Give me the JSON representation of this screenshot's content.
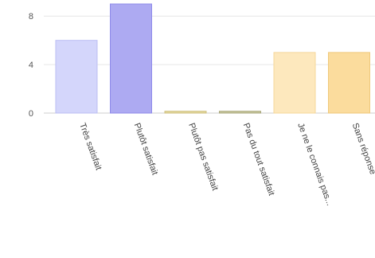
{
  "chart_data": {
    "type": "bar",
    "categories": [
      "Très satisfait",
      "Plutôt satisfait",
      "Plutôt pas satisfait",
      "Pas du tout satisfait",
      "Je ne le connais pas...",
      "Sans réponse"
    ],
    "values": [
      6,
      9,
      0.15,
      0.15,
      5,
      5
    ],
    "ylim": [
      0,
      9
    ],
    "yticks": [
      0,
      4,
      8
    ],
    "grid": true,
    "legend": "none",
    "bar_colors": [
      "#d4d6fb",
      "#adaaf2",
      "#e5d9a1",
      "#c9c89e",
      "#fde8bd",
      "#fbdc9d"
    ],
    "bar_edges": [
      "#bcbff3",
      "#8f8bea",
      "#cdbe7c",
      "#a9a77c",
      "#f5d79b",
      "#efc97b"
    ]
  }
}
